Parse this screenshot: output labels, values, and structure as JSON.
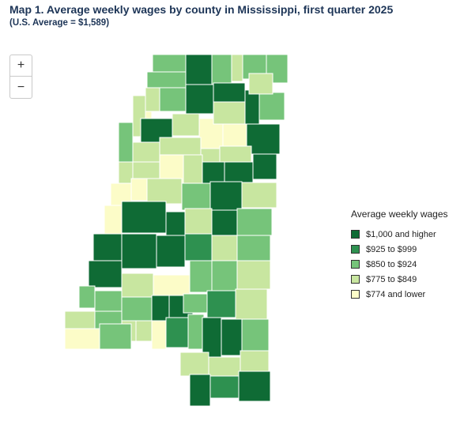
{
  "title": "Map 1. Average weekly wages by county in Mississippi, first quarter 2025",
  "subtitle": "(U.S. Average = $1,589)",
  "zoom": {
    "in_label": "+",
    "out_label": "−"
  },
  "legend": {
    "title": "Average weekly wages",
    "items": [
      {
        "label": "$1,000 and higher",
        "color": "#0f6b35"
      },
      {
        "label": "$925 to $999",
        "color": "#2e9150"
      },
      {
        "label": "$850 to $924",
        "color": "#76c47a"
      },
      {
        "label": "$775 to $849",
        "color": "#c8e6a0"
      },
      {
        "label": "$774 and lower",
        "color": "#fcfcc8"
      }
    ]
  },
  "border_color": "#ffffff"
}
